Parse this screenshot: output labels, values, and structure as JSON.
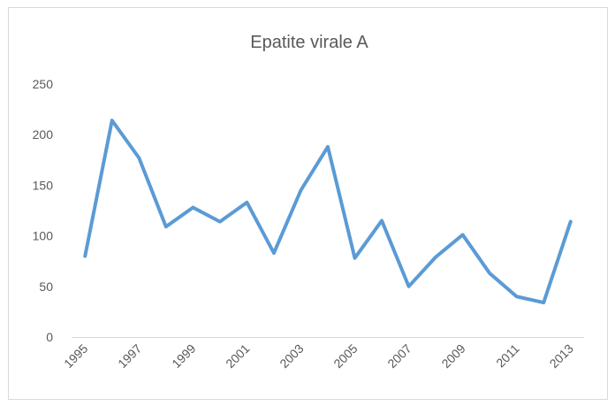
{
  "chart_data": {
    "type": "line",
    "title": "Epatite virale A",
    "categories": [
      "1995",
      null,
      "1997",
      null,
      "1999",
      null,
      "2001",
      null,
      "2003",
      null,
      "2005",
      null,
      "2007",
      null,
      "2009",
      null,
      "2011",
      null,
      "2013"
    ],
    "series": [
      {
        "name": "Epatite virale A",
        "color": "#5b9bd5",
        "values": [
          80,
          214,
          177,
          109,
          128,
          114,
          133,
          83,
          145,
          188,
          78,
          115,
          50,
          79,
          101,
          63,
          40,
          34,
          114
        ]
      }
    ],
    "ylim": [
      0,
      250
    ],
    "yticks": [
      0,
      50,
      100,
      150,
      200,
      250
    ],
    "grid": false
  }
}
